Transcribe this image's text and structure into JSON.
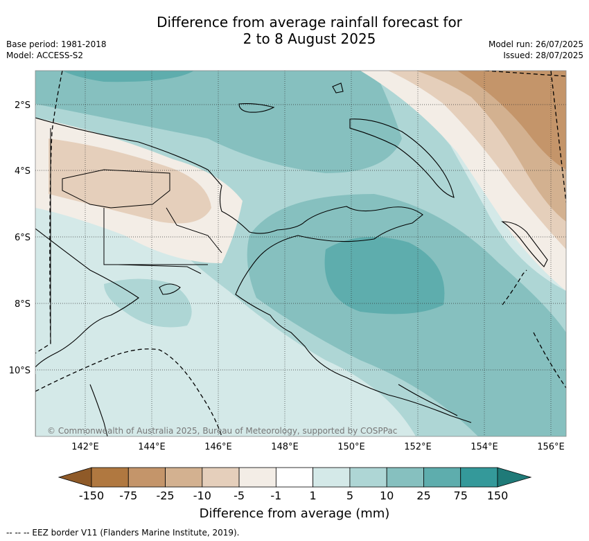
{
  "title_line1": "Difference from average rainfall forecast for",
  "title_line2": "2 to 8 August 2025",
  "meta_left": [
    "Base period: 1981-2018",
    "Model: ACCESS-S2"
  ],
  "meta_right": [
    "Model run: 26/07/2025",
    "Issued: 28/07/2025"
  ],
  "lon_ticks": [
    "142°E",
    "144°E",
    "146°E",
    "148°E",
    "150°E",
    "152°E",
    "154°E",
    "156°E"
  ],
  "lat_ticks": [
    "2°S",
    "4°S",
    "6°S",
    "8°S",
    "10°S"
  ],
  "copyright": "© Commonwealth of Australia 2025, Bureau of Meteorology, supported by COSPPac",
  "colorbar": {
    "title": "Difference from average (mm)",
    "ticks": [
      "-150",
      "-75",
      "-25",
      "-10",
      "-5",
      "-1",
      "1",
      "5",
      "10",
      "25",
      "75",
      "150"
    ],
    "colors": {
      "below_min": "#8f5a28",
      "bins": [
        "#b07840",
        "#c4956a",
        "#d3b190",
        "#e5cfbb",
        "#f3ede6",
        "#ffffff",
        "#d4e9e8",
        "#aed6d5",
        "#86c0bf",
        "#5eadad",
        "#34999a"
      ],
      "above_max": "#1f7a78"
    }
  },
  "footnote": "--  --  -- EEZ border V11 (Flanders Marine Institute, 2019)."
}
